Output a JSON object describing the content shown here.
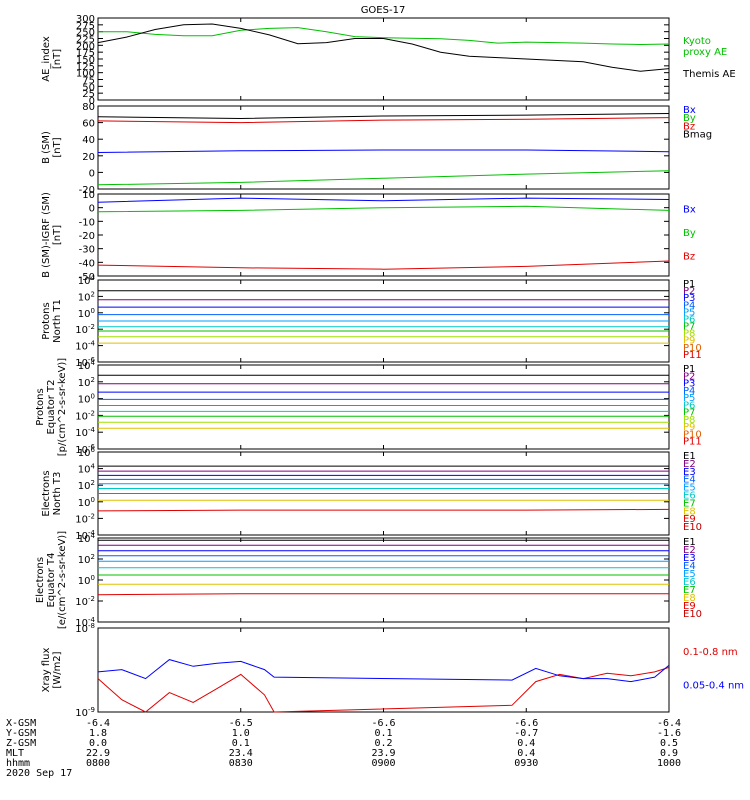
{
  "title": "GOES-17",
  "time_axis": {
    "rows": [
      {
        "label": "X-GSM",
        "values": [
          "-6.4",
          "-6.5",
          "-6.6",
          "-6.6",
          "-6.4"
        ]
      },
      {
        "label": "Y-GSM",
        "values": [
          "1.8",
          "1.0",
          "0.1",
          "-0.7",
          "-1.6"
        ]
      },
      {
        "label": "Z-GSM",
        "values": [
          "0.0",
          "0.1",
          "0.2",
          "0.4",
          "0.5"
        ]
      },
      {
        "label": "MLT",
        "values": [
          "22.9",
          "23.4",
          "23.9",
          "0.4",
          "0.9"
        ]
      },
      {
        "label": "hhmm",
        "values": [
          "0800",
          "0830",
          "0900",
          "0930",
          "1000"
        ]
      }
    ],
    "date": "2020 Sep 17"
  },
  "chart_data": [
    {
      "type": "line",
      "ylabel": "AE_index\n[nT]",
      "ylim": [
        0,
        300
      ],
      "yticks": [
        "0",
        "25",
        "50",
        "75",
        "100",
        "125",
        "150",
        "175",
        "200",
        "225",
        "250",
        "275",
        "300"
      ],
      "series": [
        {
          "name": "Kyoto\nproxy AE",
          "color": "#00c000",
          "x": [
            0,
            6,
            12,
            18,
            24,
            30,
            36,
            42,
            48,
            54,
            60,
            66,
            72,
            78,
            84,
            90,
            96,
            102,
            108,
            114,
            120
          ],
          "y": [
            250,
            250,
            240,
            235,
            235,
            255,
            262,
            265,
            250,
            232,
            228,
            226,
            224,
            218,
            208,
            212,
            210,
            208,
            205,
            203,
            205
          ]
        },
        {
          "name": "Themis AE",
          "color": "#000000",
          "x": [
            0,
            6,
            12,
            18,
            24,
            30,
            36,
            42,
            48,
            54,
            60,
            66,
            72,
            78,
            84,
            90,
            96,
            102,
            108,
            114,
            120
          ],
          "y": [
            210,
            230,
            258,
            275,
            278,
            262,
            238,
            206,
            210,
            225,
            225,
            205,
            175,
            160,
            155,
            150,
            145,
            140,
            120,
            105,
            115
          ]
        }
      ]
    },
    {
      "type": "line",
      "ylabel": "B (SM)\n[nT]",
      "ylim": [
        -20,
        80
      ],
      "yticks": [
        "-20",
        "0",
        "20",
        "40",
        "60",
        "80"
      ],
      "series": [
        {
          "name": "Bx",
          "color": "#0000ff",
          "x": [
            0,
            30,
            60,
            90,
            120
          ],
          "y": [
            24,
            26,
            27,
            27,
            25
          ]
        },
        {
          "name": "By",
          "color": "#00c000",
          "x": [
            0,
            30,
            60,
            90,
            120
          ],
          "y": [
            -15,
            -12,
            -7,
            -2,
            2
          ]
        },
        {
          "name": "Bz",
          "color": "#e00000",
          "x": [
            0,
            30,
            60,
            90,
            120
          ],
          "y": [
            62,
            60,
            63,
            64,
            66
          ]
        },
        {
          "name": "Bmag",
          "color": "#000000",
          "x": [
            0,
            30,
            60,
            90,
            120
          ],
          "y": [
            67,
            65,
            68,
            69,
            71
          ]
        }
      ]
    },
    {
      "type": "line",
      "ylabel": "B (SM)-IGRF (SM)\n[nT]",
      "ylim": [
        -50,
        10
      ],
      "yticks": [
        "-50",
        "-40",
        "-30",
        "-20",
        "-10",
        "0",
        "10"
      ],
      "series": [
        {
          "name": "Bx",
          "color": "#0000ff",
          "x": [
            0,
            30,
            60,
            90,
            120
          ],
          "y": [
            4,
            7,
            5,
            7,
            6
          ]
        },
        {
          "name": "By",
          "color": "#00c000",
          "x": [
            0,
            30,
            60,
            90,
            120
          ],
          "y": [
            -3,
            -2,
            0,
            1,
            -2
          ]
        },
        {
          "name": "Bz",
          "color": "#e00000",
          "x": [
            0,
            30,
            60,
            90,
            120
          ],
          "y": [
            -42,
            -44,
            -45,
            -43,
            -39
          ]
        }
      ]
    },
    {
      "type": "line",
      "ylabel": "Protons\nNorth T1",
      "yscale": "log",
      "ylim": [
        1e-06,
        10000.0
      ],
      "yticks": [
        "10^-6",
        "10^-4",
        "10^-2",
        "10^0",
        "10^2",
        "10^4"
      ],
      "series": [
        {
          "name": "P1",
          "color": "#000000",
          "x": [
            0,
            120
          ],
          "y": [
            500,
            500
          ]
        },
        {
          "name": "P2",
          "color": "#800080",
          "x": [
            0,
            120
          ],
          "y": [
            40,
            40
          ]
        },
        {
          "name": "P3",
          "color": "#0000ff",
          "x": [
            0,
            120
          ],
          "y": [
            5,
            5
          ]
        },
        {
          "name": "P4",
          "color": "#0060ff",
          "x": [
            0,
            120
          ],
          "y": [
            0.6,
            0.6
          ]
        },
        {
          "name": "P5",
          "color": "#00a0ff",
          "x": [
            0,
            120
          ],
          "y": [
            0.1,
            0.1
          ]
        },
        {
          "name": "P6",
          "color": "#00c8c8",
          "x": [
            0,
            120
          ],
          "y": [
            0.02,
            0.02
          ]
        },
        {
          "name": "P7",
          "color": "#00c000",
          "x": [
            0,
            120
          ],
          "y": [
            0.006,
            0.006
          ]
        },
        {
          "name": "P8",
          "color": "#a0e000",
          "x": [
            0,
            120
          ],
          "y": [
            0.0012,
            0.0012
          ]
        },
        {
          "name": "P9",
          "color": "#e0c000",
          "x": [
            0,
            120
          ],
          "y": [
            0.0002,
            0.0002
          ]
        },
        {
          "name": "P10",
          "color": "#e06000",
          "x": [],
          "y": []
        },
        {
          "name": "P11",
          "color": "#e00000",
          "x": [],
          "y": []
        }
      ]
    },
    {
      "type": "line",
      "ylabel": "Protons\nEquator T2\n[p/(cm^2-s-sr-keV)]",
      "yscale": "log",
      "ylim": [
        1e-06,
        10000.0
      ],
      "yticks": [
        "10^-6",
        "10^-4",
        "10^-2",
        "10^0",
        "10^2",
        "10^4"
      ],
      "series": [
        {
          "name": "P1",
          "color": "#000000",
          "x": [
            0,
            120
          ],
          "y": [
            600,
            600
          ]
        },
        {
          "name": "P2",
          "color": "#800080",
          "x": [
            0,
            120
          ],
          "y": [
            60,
            60
          ]
        },
        {
          "name": "P3",
          "color": "#0000ff",
          "x": [
            0,
            120
          ],
          "y": [
            6,
            6
          ]
        },
        {
          "name": "P4",
          "color": "#0060ff",
          "x": [
            0,
            120
          ],
          "y": [
            0.8,
            0.8
          ]
        },
        {
          "name": "P5",
          "color": "#00a0ff",
          "x": [
            0,
            120
          ],
          "y": [
            0.15,
            0.15
          ]
        },
        {
          "name": "P6",
          "color": "#00c8c8",
          "x": [
            0,
            120
          ],
          "y": [
            0.03,
            0.03
          ]
        },
        {
          "name": "P7",
          "color": "#00c000",
          "x": [
            0,
            120
          ],
          "y": [
            0.008,
            0.008
          ]
        },
        {
          "name": "P8",
          "color": "#a0e000",
          "x": [
            0,
            120
          ],
          "y": [
            0.0015,
            0.0015
          ]
        },
        {
          "name": "P9",
          "color": "#e0c000",
          "x": [
            0,
            120
          ],
          "y": [
            0.0003,
            0.0003
          ]
        },
        {
          "name": "P10",
          "color": "#e06000",
          "x": [],
          "y": []
        },
        {
          "name": "P11",
          "color": "#e00000",
          "x": [],
          "y": []
        }
      ]
    },
    {
      "type": "line",
      "ylabel": "Electrons\nNorth T3",
      "yscale": "log",
      "ylim": [
        0.0001,
        1000000.0
      ],
      "yticks": [
        "10^-4",
        "10^-2",
        "10^0",
        "10^2",
        "10^4",
        "10^6"
      ],
      "series": [
        {
          "name": "E1",
          "color": "#000000",
          "x": [
            0,
            120
          ],
          "y": [
            20000,
            20000
          ]
        },
        {
          "name": "E2",
          "color": "#800080",
          "x": [
            0,
            120
          ],
          "y": [
            5000,
            5000
          ]
        },
        {
          "name": "E3",
          "color": "#0000ff",
          "x": [
            0,
            120
          ],
          "y": [
            1500,
            1500
          ]
        },
        {
          "name": "E4",
          "color": "#0060ff",
          "x": [
            0,
            120
          ],
          "y": [
            500,
            500
          ]
        },
        {
          "name": "E5",
          "color": "#00a0ff",
          "x": [
            0,
            120
          ],
          "y": [
            150,
            150
          ]
        },
        {
          "name": "E6",
          "color": "#00c8c8",
          "x": [
            0,
            120
          ],
          "y": [
            40,
            40
          ]
        },
        {
          "name": "E7",
          "color": "#00c000",
          "x": [
            0,
            120
          ],
          "y": [
            10,
            10
          ]
        },
        {
          "name": "E8",
          "color": "#e0c000",
          "x": [
            0,
            120
          ],
          "y": [
            1.5,
            1.5
          ]
        },
        {
          "name": "E9",
          "color": "#e00000",
          "x": [
            0,
            30,
            60,
            90,
            120
          ],
          "y": [
            0.08,
            0.1,
            0.1,
            0.1,
            0.12
          ]
        },
        {
          "name": "E10",
          "color": "#c00000",
          "x": [],
          "y": []
        }
      ]
    },
    {
      "type": "line",
      "ylabel": "Electrons\nEquator T4\n[e/(cm^2-s-sr-keV)]",
      "yscale": "log",
      "ylim": [
        0.0001,
        10000.0
      ],
      "yticks": [
        "10^-4",
        "10^-2",
        "10^0",
        "10^2",
        "10^4"
      ],
      "series": [
        {
          "name": "E1",
          "color": "#000000",
          "x": [
            0,
            120
          ],
          "y": [
            6000,
            6000
          ]
        },
        {
          "name": "E2",
          "color": "#800080",
          "x": [
            0,
            120
          ],
          "y": [
            2000,
            2000
          ]
        },
        {
          "name": "E3",
          "color": "#0000ff",
          "x": [
            0,
            120
          ],
          "y": [
            600,
            600
          ]
        },
        {
          "name": "E4",
          "color": "#0060ff",
          "x": [
            0,
            120
          ],
          "y": [
            200,
            200
          ]
        },
        {
          "name": "E5",
          "color": "#00a0ff",
          "x": [
            0,
            120
          ],
          "y": [
            60,
            60
          ]
        },
        {
          "name": "E6",
          "color": "#00c8c8",
          "x": [
            0,
            120
          ],
          "y": [
            15,
            15
          ]
        },
        {
          "name": "E7",
          "color": "#00c000",
          "x": [
            0,
            120
          ],
          "y": [
            3,
            3
          ]
        },
        {
          "name": "E8",
          "color": "#e0c000",
          "x": [
            0,
            120
          ],
          "y": [
            0.4,
            0.4
          ]
        },
        {
          "name": "E9",
          "color": "#e00000",
          "x": [
            0,
            30,
            60,
            90,
            120
          ],
          "y": [
            0.04,
            0.05,
            0.05,
            0.05,
            0.05
          ]
        },
        {
          "name": "E10",
          "color": "#c00000",
          "x": [],
          "y": []
        }
      ]
    },
    {
      "type": "line",
      "ylabel": "Xray flux\n[W/m2]",
      "yscale": "log",
      "ylim": [
        1e-09,
        1e-08
      ],
      "yticks": [
        "10^-9",
        "10^-8"
      ],
      "series": [
        {
          "name": "0.1-0.8 nm",
          "color": "#e00000",
          "x": [
            0,
            5,
            10,
            15,
            20,
            25,
            30,
            35,
            37,
            87,
            92,
            97,
            102,
            107,
            112,
            117,
            120
          ],
          "y": [
            2.5e-09,
            1.4e-09,
            1e-09,
            1.7e-09,
            1.3e-09,
            1.9e-09,
            2.8e-09,
            1.6e-09,
            1e-09,
            1.2e-09,
            2.3e-09,
            2.8e-09,
            2.5e-09,
            2.9e-09,
            2.7e-09,
            3e-09,
            3.4e-09
          ]
        },
        {
          "name": "0.05-0.4 nm",
          "color": "#0000ff",
          "x": [
            0,
            5,
            10,
            15,
            20,
            25,
            30,
            35,
            37,
            87,
            92,
            97,
            102,
            107,
            112,
            117,
            120
          ],
          "y": [
            3e-09,
            3.2e-09,
            2.5e-09,
            4.2e-09,
            3.5e-09,
            3.8e-09,
            4e-09,
            3.2e-09,
            2.6e-09,
            2.4e-09,
            3.3e-09,
            2.7e-09,
            2.5e-09,
            2.5e-09,
            2.3e-09,
            2.6e-09,
            3.6e-09
          ]
        }
      ]
    }
  ]
}
